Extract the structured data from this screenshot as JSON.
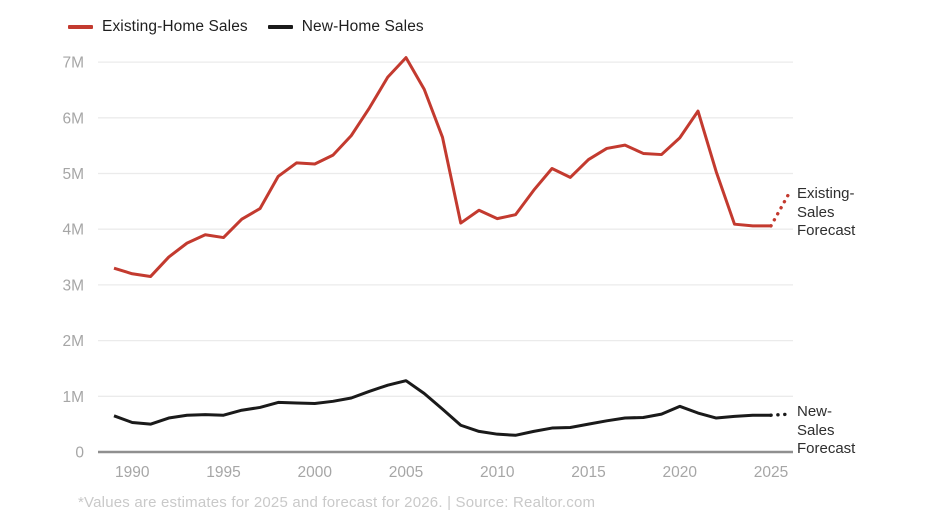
{
  "footer": {
    "text": "*Values are estimates for 2025 and forecast for 2026. | Source: Realtor.com"
  },
  "annotations": {
    "existing": {
      "lines": [
        "Existing-",
        "Sales",
        "Forecast"
      ]
    },
    "new": {
      "lines": [
        "New-",
        "Sales",
        "Forecast"
      ]
    }
  },
  "chart_data": {
    "type": "line",
    "title": "",
    "xlabel": "",
    "ylabel": "",
    "xlim": [
      1989,
      2026
    ],
    "ylim": [
      0,
      7.3
    ],
    "grid": "horizontal",
    "legend_position": "top-left",
    "grid_color": "#ebebeb",
    "baseline_color": "#8f8f8f",
    "tick_label_color": "#a6a6a6",
    "forecast_from_year": 2025,
    "xticks": [
      1990,
      1995,
      2000,
      2005,
      2010,
      2015,
      2020,
      2025
    ],
    "yticks": [
      {
        "value": 0,
        "label": "0"
      },
      {
        "value": 1,
        "label": "1M"
      },
      {
        "value": 2,
        "label": "2M"
      },
      {
        "value": 3,
        "label": "3M"
      },
      {
        "value": 4,
        "label": "4M"
      },
      {
        "value": 5,
        "label": "5M"
      },
      {
        "value": 6,
        "label": "6M"
      },
      {
        "value": 7,
        "label": "7M"
      }
    ],
    "x_years": [
      1989,
      1990,
      1991,
      1992,
      1993,
      1994,
      1995,
      1996,
      1997,
      1998,
      1999,
      2000,
      2001,
      2002,
      2003,
      2004,
      2005,
      2006,
      2007,
      2008,
      2009,
      2010,
      2011,
      2012,
      2013,
      2014,
      2015,
      2016,
      2017,
      2018,
      2019,
      2020,
      2021,
      2022,
      2023,
      2024,
      2025,
      2026
    ],
    "series": [
      {
        "name": "Existing-Home Sales",
        "color": "#c33a2f",
        "values": [
          3.3,
          3.2,
          3.15,
          3.5,
          3.75,
          3.9,
          3.85,
          4.18,
          4.37,
          4.95,
          5.19,
          5.17,
          5.33,
          5.68,
          6.18,
          6.73,
          7.08,
          6.51,
          5.65,
          4.11,
          4.34,
          4.19,
          4.26,
          4.7,
          5.09,
          4.93,
          5.25,
          5.45,
          5.51,
          5.36,
          5.34,
          5.64,
          6.12,
          5.03,
          4.09,
          4.06,
          4.06,
          4.65
        ]
      },
      {
        "name": "New-Home Sales",
        "color": "#1a1a1a",
        "values": [
          0.65,
          0.53,
          0.5,
          0.61,
          0.66,
          0.67,
          0.66,
          0.75,
          0.8,
          0.89,
          0.88,
          0.87,
          0.91,
          0.97,
          1.09,
          1.2,
          1.28,
          1.05,
          0.77,
          0.48,
          0.37,
          0.32,
          0.3,
          0.37,
          0.43,
          0.44,
          0.5,
          0.56,
          0.61,
          0.62,
          0.68,
          0.82,
          0.7,
          0.61,
          0.64,
          0.66,
          0.66,
          0.68
        ]
      }
    ]
  }
}
